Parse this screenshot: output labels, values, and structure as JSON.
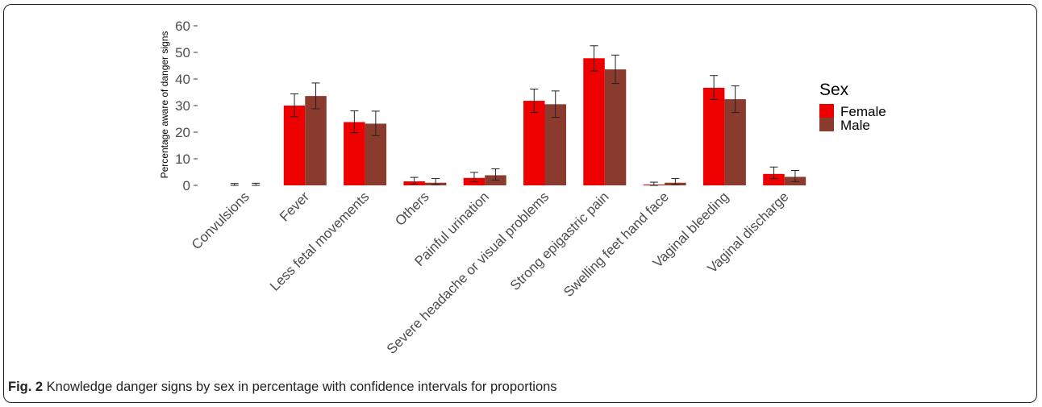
{
  "caption": {
    "label": "Fig. 2",
    "text": " Knowledge danger signs by sex in percentage with confidence intervals for proportions"
  },
  "chart_data": {
    "type": "bar",
    "title": "",
    "xlabel": "",
    "ylabel": "Percentage aware of danger signs",
    "ylim": [
      0,
      60
    ],
    "yticks": [
      0,
      10,
      20,
      30,
      40,
      50,
      60
    ],
    "grid": false,
    "legend": {
      "title": "Sex",
      "position": "right"
    },
    "categories": [
      "Convulsions",
      "Fever",
      "Less fetal movements",
      "Others",
      "Painful urination",
      "Severe headache or visual problems",
      "Strong epigastric pain",
      "Swelling feet hand face",
      "Vaginal bleeding",
      "Vaginal discharge"
    ],
    "series": [
      {
        "name": "Female",
        "color": "#ee0000",
        "values": [
          0,
          30.0,
          23.8,
          1.5,
          2.8,
          31.8,
          47.8,
          0.3,
          36.7,
          4.3
        ],
        "ci_low": [
          0,
          25.8,
          19.8,
          0.5,
          1.3,
          27.4,
          43.0,
          0,
          32.3,
          2.5
        ],
        "ci_high": [
          0.7,
          34.4,
          28.0,
          3.0,
          4.9,
          36.2,
          52.5,
          1.2,
          41.3,
          6.9
        ]
      },
      {
        "name": "Male",
        "color": "#8b3a2e",
        "values": [
          0,
          33.6,
          23.2,
          1.0,
          3.8,
          30.5,
          43.6,
          1.0,
          32.4,
          3.2
        ],
        "ci_low": [
          0,
          28.8,
          18.7,
          0.2,
          2.0,
          25.6,
          38.3,
          0.2,
          27.4,
          1.4
        ],
        "ci_high": [
          0.8,
          38.5,
          27.9,
          2.6,
          6.2,
          35.5,
          49.0,
          2.6,
          37.4,
          5.6
        ]
      }
    ]
  }
}
